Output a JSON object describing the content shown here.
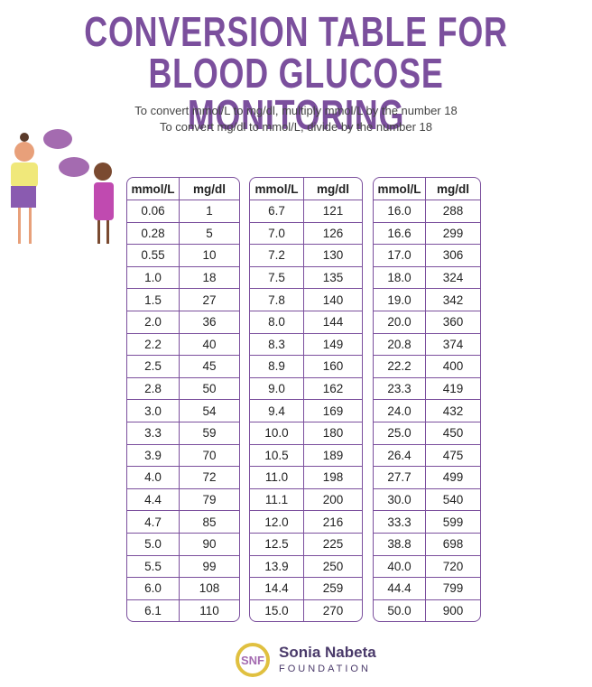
{
  "header": {
    "title_lines": [
      "CONVERSION TABLE FOR",
      "BLOOD GLUCOSE MONITORING"
    ],
    "instructions": [
      "To convert mmol/L to mg/dl, multiply mmol/L by the number 18",
      "To convert mg/dl to mmol/L, divide by the number 18"
    ]
  },
  "tables": [
    {
      "header": [
        "mmol/L",
        "mg/dl"
      ],
      "rows": [
        [
          "0.06",
          "1"
        ],
        [
          "0.28",
          "5"
        ],
        [
          "0.55",
          "10"
        ],
        [
          "1.0",
          "18"
        ],
        [
          "1.5",
          "27"
        ],
        [
          "2.0",
          "36"
        ],
        [
          "2.2",
          "40"
        ],
        [
          "2.5",
          "45"
        ],
        [
          "2.8",
          "50"
        ],
        [
          "3.0",
          "54"
        ],
        [
          "3.3",
          "59"
        ],
        [
          "3.9",
          "70"
        ],
        [
          "4.0",
          "72"
        ],
        [
          "4.4",
          "79"
        ],
        [
          "4.7",
          "85"
        ],
        [
          "5.0",
          "90"
        ],
        [
          "5.5",
          "99"
        ],
        [
          "6.0",
          "108"
        ],
        [
          "6.1",
          "110"
        ]
      ]
    },
    {
      "header": [
        "mmol/L",
        "mg/dl"
      ],
      "rows": [
        [
          "6.7",
          "121"
        ],
        [
          "7.0",
          "126"
        ],
        [
          "7.2",
          "130"
        ],
        [
          "7.5",
          "135"
        ],
        [
          "7.8",
          "140"
        ],
        [
          "8.0",
          "144"
        ],
        [
          "8.3",
          "149"
        ],
        [
          "8.9",
          "160"
        ],
        [
          "9.0",
          "162"
        ],
        [
          "9.4",
          "169"
        ],
        [
          "10.0",
          "180"
        ],
        [
          "10.5",
          "189"
        ],
        [
          "11.0",
          "198"
        ],
        [
          "11.1",
          "200"
        ],
        [
          "12.0",
          "216"
        ],
        [
          "12.5",
          "225"
        ],
        [
          "13.9",
          "250"
        ],
        [
          "14.4",
          "259"
        ],
        [
          "15.0",
          "270"
        ]
      ]
    },
    {
      "header": [
        "mmol/L",
        "mg/dl"
      ],
      "rows": [
        [
          "16.0",
          "288"
        ],
        [
          "16.6",
          "299"
        ],
        [
          "17.0",
          "306"
        ],
        [
          "18.0",
          "324"
        ],
        [
          "19.0",
          "342"
        ],
        [
          "20.0",
          "360"
        ],
        [
          "20.8",
          "374"
        ],
        [
          "22.2",
          "400"
        ],
        [
          "23.3",
          "419"
        ],
        [
          "24.0",
          "432"
        ],
        [
          "25.0",
          "450"
        ],
        [
          "26.4",
          "475"
        ],
        [
          "27.7",
          "499"
        ],
        [
          "30.0",
          "540"
        ],
        [
          "33.3",
          "599"
        ],
        [
          "38.8",
          "698"
        ],
        [
          "40.0",
          "720"
        ],
        [
          "44.4",
          "799"
        ],
        [
          "50.0",
          "900"
        ]
      ]
    }
  ],
  "footer": {
    "logo_mark": "SNF",
    "name": "Sonia Nabeta",
    "subtitle": "FOUNDATION"
  }
}
